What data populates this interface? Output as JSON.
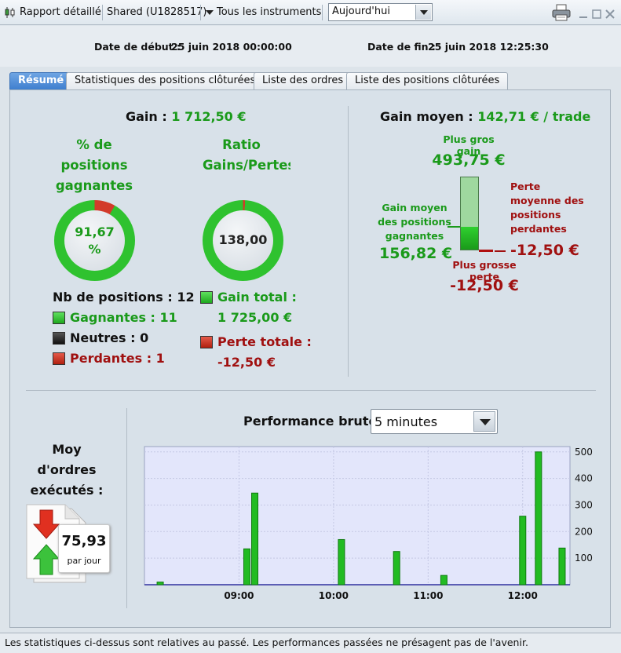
{
  "toolbar": {
    "report_label": "Rapport détaillé",
    "account_label": "Shared (U1828517)",
    "instruments_label": "Tous les instruments",
    "period_value": "Aujourd'hui"
  },
  "dates": {
    "start_label": "Date de début :",
    "start_value": "25 juin 2018 00:00:00",
    "end_label": "Date de fin :",
    "end_value": "25 juin 2018 12:25:30"
  },
  "tabs": [
    {
      "label": "Résumé"
    },
    {
      "label": "Statistiques des positions clôturées"
    },
    {
      "label": "Liste des ordres"
    },
    {
      "label": "Liste des positions clôturées"
    }
  ],
  "summary": {
    "gain_label": "Gain :",
    "gain_value": "1 712,50 €",
    "win_pct_title_1": "% de",
    "win_pct_title_2": "positions",
    "win_pct_title_3": "gagnantes",
    "win_pct_value": "91,67",
    "win_pct_unit": "%",
    "win_pct_fraction": 0.9167,
    "ratio_title_1": "Ratio",
    "ratio_title_2": "Gains/Pertes",
    "ratio_value": "138,00",
    "nb_positions_label": "Nb de positions : 12",
    "winning_label": "Gagnantes : 11",
    "neutral_label": "Neutres : 0",
    "losing_label": "Perdantes : 1",
    "total_gain_label": "Gain total :",
    "total_gain_value": "1 725,00 €",
    "total_loss_label": "Perte totale :",
    "total_loss_value": "-12,50 €"
  },
  "average": {
    "title": "Gain moyen :",
    "value": "142,71 € / trade",
    "biggest_gain_label": "Plus gros gain",
    "biggest_gain_value": "493,75 €",
    "avg_win_label_1": "Gain moyen",
    "avg_win_label_2": "des positions",
    "avg_win_label_3": "gagnantes",
    "avg_win_value": "156,82 €",
    "avg_loss_label_1": "Perte",
    "avg_loss_label_2": "moyenne des",
    "avg_loss_label_3": "positions",
    "avg_loss_label_4": "perdantes",
    "avg_loss_value": "-12,50 €",
    "biggest_loss_label": "Plus grosse perte",
    "biggest_loss_value": "-12,50 €"
  },
  "orders": {
    "title_1": "Moy",
    "title_2": "d'ordres",
    "title_3": "exécutés :",
    "value": "75,93",
    "unit": "par jour"
  },
  "performance": {
    "title": "Performance brute",
    "interval": "5 minutes"
  },
  "chart_data": {
    "type": "bar",
    "x_tick_labels": [
      "09:00",
      "10:00",
      "11:00",
      "12:00"
    ],
    "y_tick_labels": [
      "100",
      "200",
      "300",
      "400",
      "500"
    ],
    "ylim": [
      0,
      520
    ],
    "bars": [
      {
        "time": "08:10",
        "value": 10
      },
      {
        "time": "09:05",
        "value": 135
      },
      {
        "time": "09:10",
        "value": 345
      },
      {
        "time": "10:05",
        "value": 170
      },
      {
        "time": "10:40",
        "value": 125
      },
      {
        "time": "11:10",
        "value": 35
      },
      {
        "time": "12:00",
        "value": 258
      },
      {
        "time": "12:10",
        "value": 500
      },
      {
        "time": "12:25",
        "value": 138
      }
    ],
    "grid": true,
    "y_axis_side": "right"
  },
  "footer": {
    "disclaimer": "Les statistiques ci-dessus sont relatives au passé. Les performances passées ne présagent pas de l'avenir."
  },
  "colors": {
    "gain": "#1a9a1a",
    "loss": "#a01010",
    "tab_active": "#4a88d6",
    "chart_bg": "#e3e6fb",
    "bar": "#22bb22"
  }
}
